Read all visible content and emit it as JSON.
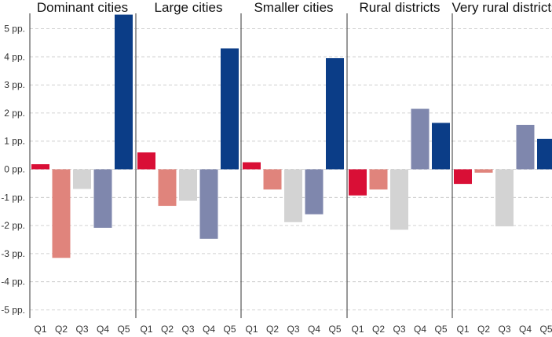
{
  "chart_data": {
    "type": "bar",
    "ylabel_unit": "pp.",
    "ylim": [
      -5.3,
      5.5
    ],
    "yticks": [
      5,
      4,
      3,
      2,
      1,
      0,
      -1,
      -2,
      -3,
      -4,
      -5
    ],
    "ytick_labels": [
      "5 pp.",
      "4 pp.",
      "3 pp.",
      "2 pp.",
      "1 pp.",
      "0 pp.",
      "-1 pp.",
      "-2 pp.",
      "-3 pp.",
      "-4 pp.",
      "-5 pp."
    ],
    "categories": [
      "Q1",
      "Q2",
      "Q3",
      "Q4",
      "Q5"
    ],
    "colors": [
      "#d90f36",
      "#e0847c",
      "#d3d3d3",
      "#7f87ad",
      "#0b3d87"
    ],
    "grid": true,
    "legend": "none",
    "panels": [
      {
        "title": "Dominant cities",
        "values": [
          0.18,
          -3.15,
          -0.7,
          -2.08,
          5.5
        ]
      },
      {
        "title": "Large cities",
        "values": [
          0.6,
          -1.3,
          -1.12,
          -2.47,
          4.3
        ]
      },
      {
        "title": "Smaller cities",
        "values": [
          0.25,
          -0.72,
          -1.88,
          -1.6,
          3.95
        ]
      },
      {
        "title": "Rural districts",
        "values": [
          -0.93,
          -0.72,
          -2.15,
          2.15,
          1.65
        ]
      },
      {
        "title": "Very rural districts",
        "values": [
          -0.52,
          -0.12,
          -2.03,
          1.58,
          1.08
        ]
      }
    ]
  }
}
